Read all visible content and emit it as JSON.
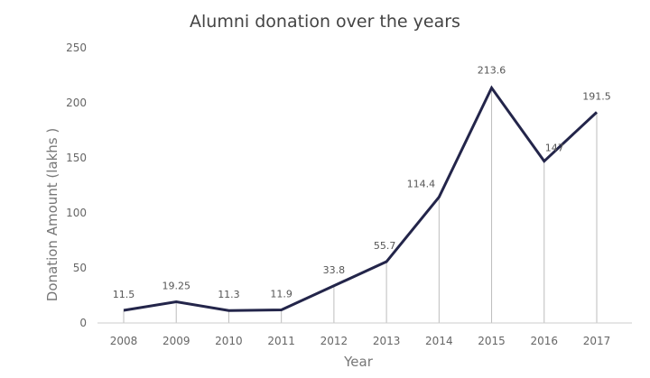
{
  "chart_data": {
    "type": "line",
    "title": "Alumni donation over the years",
    "xlabel": "Year",
    "ylabel": "Donation Amount (lakhs )",
    "categories": [
      "2008",
      "2009",
      "2010",
      "2011",
      "2012",
      "2013",
      "2014",
      "2015",
      "2016",
      "2017"
    ],
    "values": [
      11.5,
      19.25,
      11.3,
      11.9,
      33.8,
      55.7,
      114.4,
      213.6,
      147,
      191.5
    ],
    "data_labels": [
      "11.5",
      "19.25",
      "11.3",
      "11.9",
      "33.8",
      "55.7",
      "114.4",
      "213.6",
      "147",
      "191.5"
    ],
    "ylim": [
      0,
      250
    ],
    "yticks": [
      "0",
      "50",
      "100",
      "150",
      "200",
      "250"
    ],
    "grid": false,
    "drop_lines": true,
    "legend": "none",
    "colors": {
      "line": "#23254a",
      "drop_line": "#bdbdbd",
      "axis": "#cccccc"
    }
  }
}
